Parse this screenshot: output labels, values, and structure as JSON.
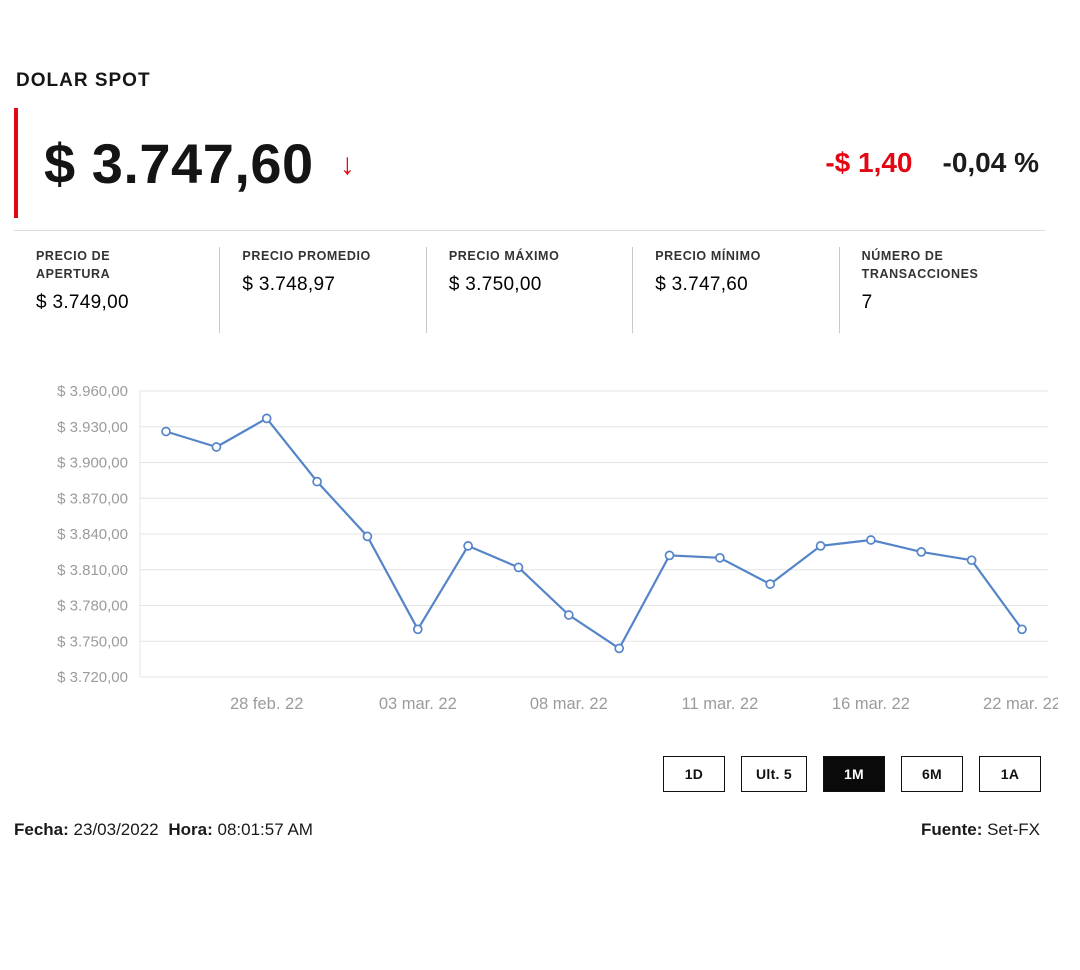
{
  "header": {
    "title": "DOLAR SPOT"
  },
  "quote": {
    "price": "$ 3.747,60",
    "arrow": "↓",
    "change_abs": "-$ 1,40",
    "change_pct": "-0,04 %",
    "accent_color": "#e30613"
  },
  "stats": [
    {
      "label": "PRECIO DE\nAPERTURA",
      "value": "$ 3.749,00"
    },
    {
      "label": "PRECIO PROMEDIO",
      "value": "$ 3.748,97"
    },
    {
      "label": "PRECIO MÁXIMO",
      "value": "$ 3.750,00"
    },
    {
      "label": "PRECIO MÍNIMO",
      "value": "$ 3.747,60"
    },
    {
      "label": "NÚMERO DE\nTRANSACCIONES",
      "value": "7"
    }
  ],
  "chart_data": {
    "type": "line",
    "title": "",
    "xlabel": "",
    "ylabel": "",
    "values": [
      3926,
      3913,
      3937,
      3884,
      3838,
      3760,
      3830,
      3812,
      3772,
      3744,
      3822,
      3820,
      3798,
      3830,
      3835,
      3825,
      3818,
      3760
    ],
    "x_tick_indices": [
      2,
      5,
      8,
      11,
      14,
      17
    ],
    "x_tick_labels": [
      "28 feb. 22",
      "03 mar. 22",
      "08 mar. 22",
      "11 mar. 22",
      "16 mar. 22",
      "22 mar. 22"
    ],
    "y_ticks": [
      3720,
      3750,
      3780,
      3810,
      3840,
      3870,
      3900,
      3930,
      3960
    ],
    "y_tick_labels": [
      "$ 3.720,00",
      "$ 3.750,00",
      "$ 3.780,00",
      "$ 3.810,00",
      "$ 3.840,00",
      "$ 3.870,00",
      "$ 3.900,00",
      "$ 3.930,00",
      "$ 3.960,00"
    ],
    "ylim": [
      3720,
      3960
    ],
    "grid": true,
    "legend": "none",
    "line_color": "#5585c8",
    "marker": "circle-open"
  },
  "range_buttons": [
    {
      "label": "1D",
      "active": false
    },
    {
      "label": "Ult. 5",
      "active": false
    },
    {
      "label": "1M",
      "active": true
    },
    {
      "label": "6M",
      "active": false
    },
    {
      "label": "1A",
      "active": false
    }
  ],
  "footer": {
    "fecha_label": "Fecha:",
    "fecha_value": "23/03/2022",
    "hora_label": "Hora:",
    "hora_value": "08:01:57 AM",
    "fuente_label": "Fuente:",
    "fuente_value": "Set-FX"
  }
}
